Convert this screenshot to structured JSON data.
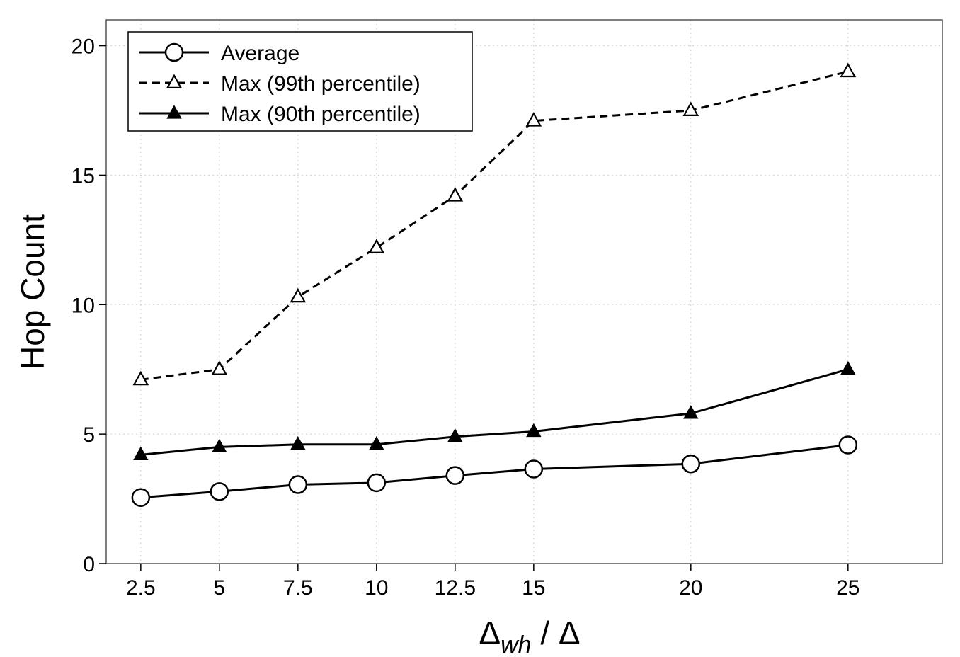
{
  "chart_data": {
    "type": "line",
    "title": "",
    "xlabel": {
      "main": "Δ",
      "sub": "wh",
      "rest": " / Δ"
    },
    "ylabel": "Hop Count",
    "x": [
      2.5,
      5,
      7.5,
      10,
      12.5,
      15,
      20,
      25
    ],
    "x_tick_labels": [
      "2.5",
      "5",
      "7.5",
      "10",
      "12.5",
      "15",
      "20",
      "25"
    ],
    "y_ticks": [
      0,
      5,
      10,
      15,
      20
    ],
    "y_tick_labels": [
      "0",
      "5",
      "10",
      "15",
      "20"
    ],
    "xlim": [
      1.4,
      28.0
    ],
    "ylim": [
      0,
      21
    ],
    "grid": true,
    "legend_position": "top-left",
    "series": [
      {
        "name": "Average",
        "marker": "open-circle",
        "line": "solid",
        "values": [
          2.55,
          2.78,
          3.05,
          3.12,
          3.4,
          3.65,
          3.85,
          4.58
        ]
      },
      {
        "name": "Max (99th percentile)",
        "marker": "open-triangle",
        "line": "dashed",
        "values": [
          7.1,
          7.5,
          10.3,
          12.2,
          14.2,
          17.1,
          17.5,
          19.0
        ]
      },
      {
        "name": "Max (90th percentile)",
        "marker": "filled-triangle",
        "line": "solid",
        "values": [
          4.2,
          4.5,
          4.6,
          4.6,
          4.9,
          5.1,
          5.8,
          7.5
        ]
      }
    ],
    "colors": {
      "line": "#000000",
      "grid": "#cfcfcf",
      "frame": "#555555"
    }
  }
}
